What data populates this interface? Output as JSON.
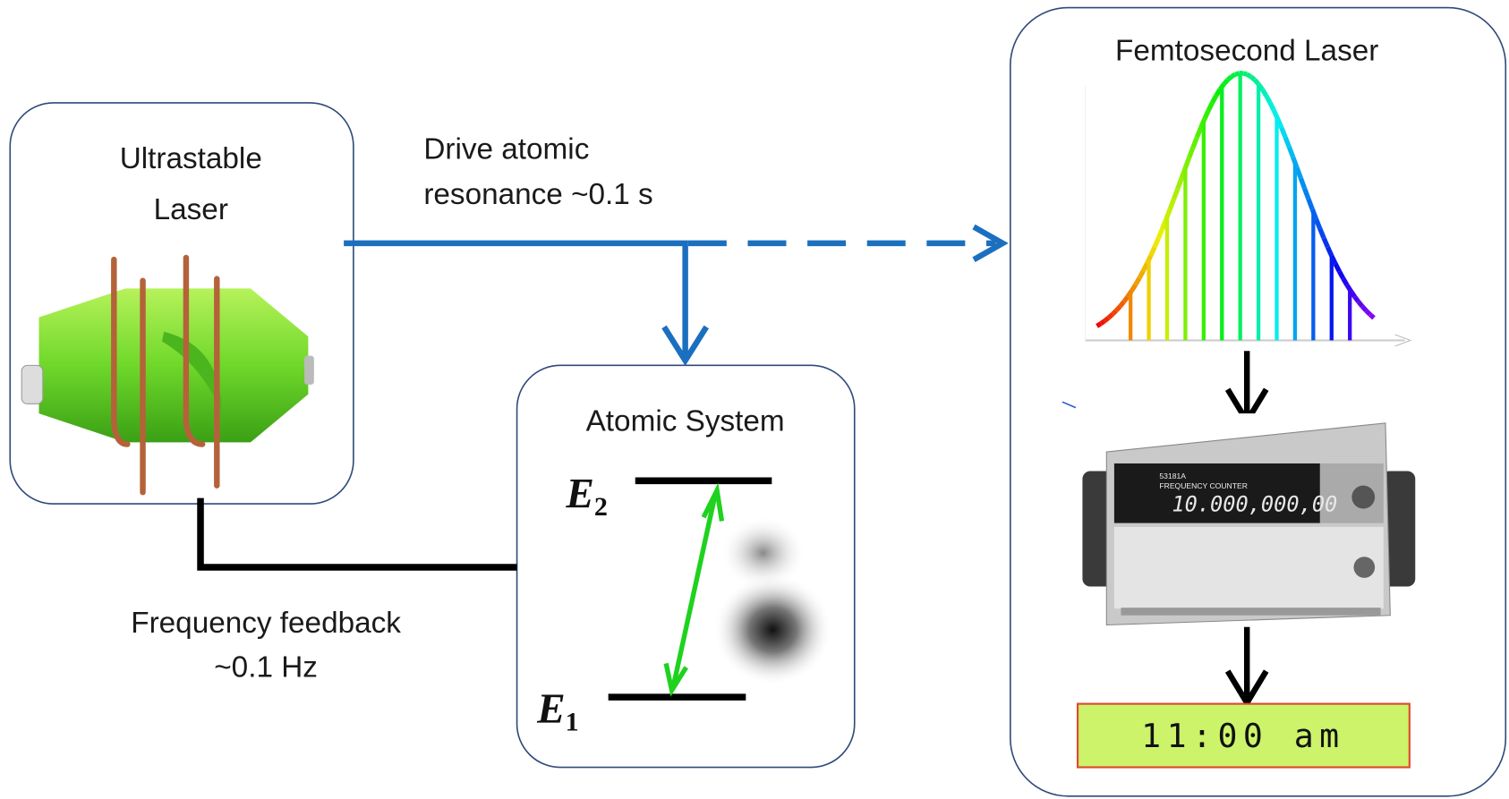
{
  "nodes": [
    {
      "label": [
        "Ultrastable",
        "Laser"
      ]
    },
    {
      "label": [
        "Atomic System"
      ],
      "levels": [
        "E",
        "2",
        "E",
        "1"
      ]
    },
    {
      "label": [
        "Femtosecond Laser"
      ],
      "counter_model": "53181A",
      "counter_name": "FREQUENCY COUNTER",
      "counter_display": "10.000,000,00",
      "clock": "11:00 am"
    }
  ],
  "edges": [
    {
      "label": [
        "Drive atomic",
        "resonance ~0.1 s"
      ]
    },
    {
      "label": [
        "Frequency feedback",
        "~0.1 Hz"
      ]
    }
  ]
}
